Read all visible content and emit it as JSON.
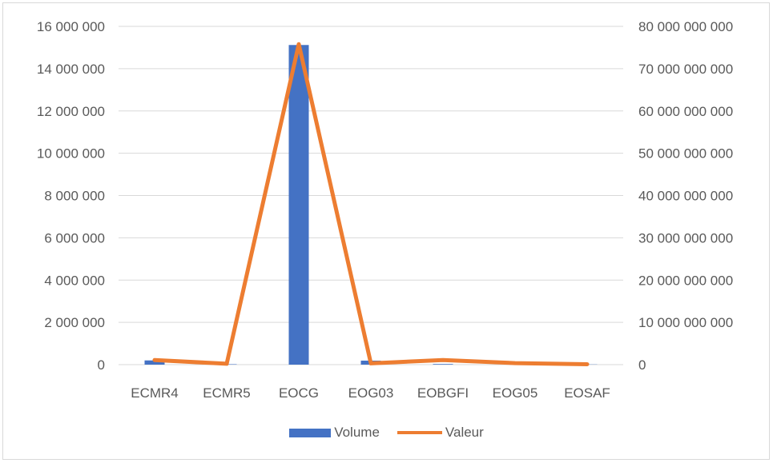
{
  "chart_data": {
    "type": "bar",
    "categories": [
      "ECMR4",
      "ECMR5",
      "EOCG",
      "EOG03",
      "EOBGFI",
      "EOG05",
      "EOSAF"
    ],
    "series": [
      {
        "name": "Volume",
        "type": "bar",
        "axis": "left",
        "color": "#4472c4",
        "values": [
          200000,
          20000,
          15120000,
          190000,
          30000,
          20000,
          10000
        ]
      },
      {
        "name": "Valeur",
        "type": "line",
        "axis": "right",
        "color": "#ed7d31",
        "values": [
          1100000000,
          200000000,
          75800000000,
          300000000,
          1100000000,
          350000000,
          100000000
        ]
      }
    ],
    "y_left": {
      "ylim": [
        0,
        16000000
      ],
      "ticks": [
        0,
        2000000,
        4000000,
        6000000,
        8000000,
        10000000,
        12000000,
        14000000,
        16000000
      ],
      "tick_labels": [
        "0",
        "2 000 000",
        "4 000 000",
        "6 000 000",
        "8 000 000",
        "10 000 000",
        "12 000 000",
        "14 000 000",
        "16 000 000"
      ]
    },
    "y_right": {
      "ylim": [
        0,
        80000000000
      ],
      "ticks": [
        0,
        10000000000,
        20000000000,
        30000000000,
        40000000000,
        50000000000,
        60000000000,
        70000000000,
        80000000000
      ],
      "tick_labels": [
        "0",
        "10 000 000 000",
        "20 000 000 000",
        "30 000 000 000",
        "40 000 000 000",
        "50 000 000 000",
        "60 000 000 000",
        "70 000 000 000",
        "80 000 000 000"
      ]
    },
    "grid": true,
    "legend": "bottom"
  }
}
